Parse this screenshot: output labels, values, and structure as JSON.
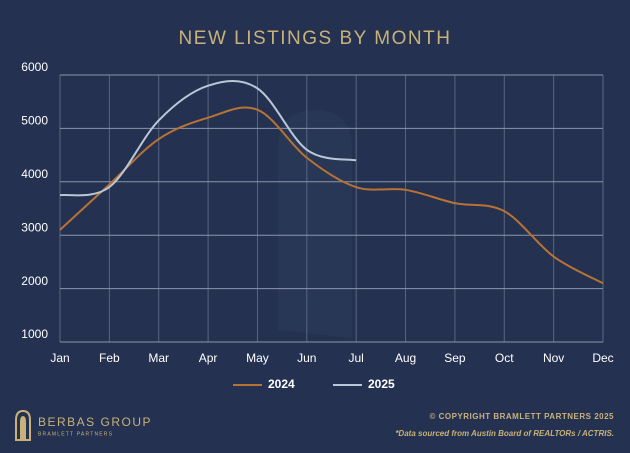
{
  "chart_data": {
    "type": "line",
    "title": "NEW LISTINGS BY MONTH",
    "categories": [
      "Jan",
      "Feb",
      "Mar",
      "Apr",
      "May",
      "Jun",
      "Jul",
      "Aug",
      "Sep",
      "Oct",
      "Nov",
      "Dec"
    ],
    "series": [
      {
        "name": "2024",
        "color": "#b87333",
        "values": [
          3100,
          3950,
          4800,
          5200,
          5350,
          4450,
          3900,
          3850,
          3600,
          3450,
          2600,
          2100
        ]
      },
      {
        "name": "2025",
        "color": "#b9c7d6",
        "values": [
          3750,
          3900,
          5150,
          5800,
          5750,
          4600,
          4400,
          null,
          null,
          null,
          null,
          null
        ]
      }
    ],
    "ylim": [
      1000,
      6000
    ],
    "yticks": [
      1000,
      2000,
      3000,
      4000,
      5000,
      6000
    ],
    "grid": true,
    "legend": "bottom",
    "logo": {
      "name": "BERBAS GROUP",
      "tagline": "BRAMLETT PARTNERS"
    },
    "copyright": "© COPYRIGHT BRAMLETT PARTNERS 2025",
    "source": "*Data sourced from Austin Board of REALTORs / ACTRIS."
  }
}
